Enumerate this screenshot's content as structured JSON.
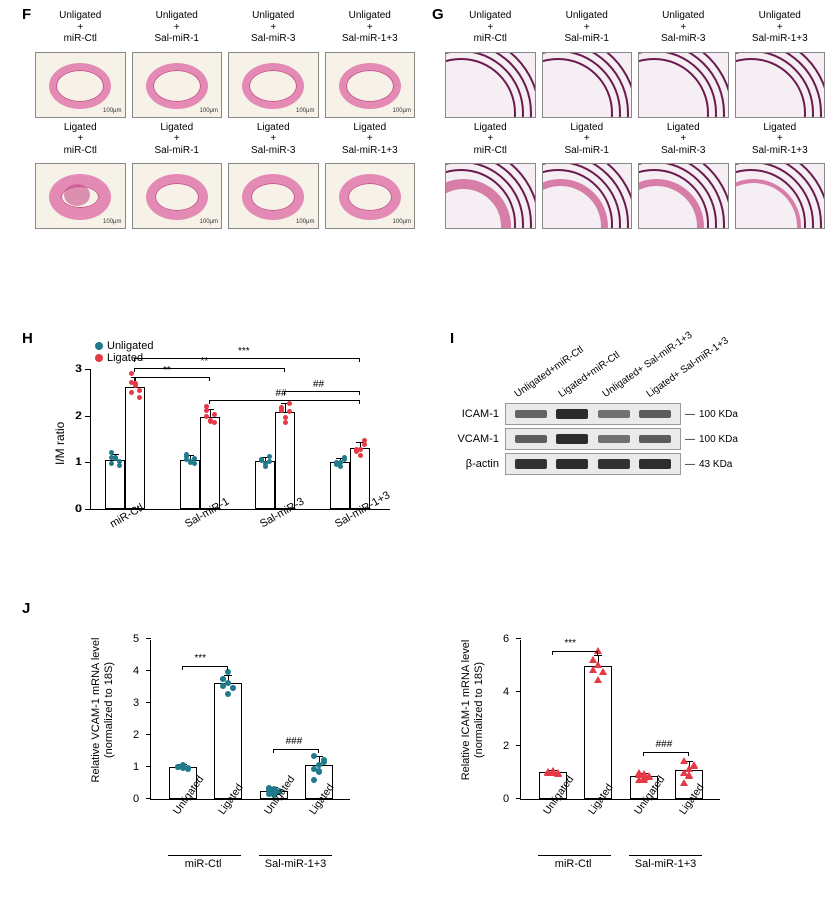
{
  "panel_letters": {
    "F": "F",
    "G": "G",
    "H": "H",
    "I": "I",
    "J": "J"
  },
  "colors": {
    "unligated_dot": "#1f7a8c",
    "ligated_dot": "#e63946",
    "he_pink": "#e48bb5",
    "he_pink_dark": "#c94f8b",
    "evg_purple": "#6a1b4d",
    "evg_pink": "#d16b9a",
    "bg_cream": "#f7f2e8",
    "blot_band": "#2b2b2b"
  },
  "conditions": [
    "miR-Ctl",
    "Sal-miR-1",
    "Sal-miR-3",
    "Sal-miR-1+3"
  ],
  "ligation": [
    "Unligated",
    "Ligated"
  ],
  "plus": "+",
  "scalebar_text": "100μm",
  "panelH": {
    "ylabel": "I/M ratio",
    "ymax": 3,
    "ytick_step": 1,
    "legend": {
      "unligated": "Unligated",
      "ligated": "Ligated"
    },
    "groups": [
      "miR-Ctl",
      "Sal-miR-1",
      "Sal-miR-3",
      "Sal-miR-1+3"
    ],
    "unligated_means": [
      1.05,
      1.05,
      1.02,
      1.0
    ],
    "ligated_means": [
      2.62,
      1.98,
      2.08,
      1.3
    ],
    "unligated_err": [
      0.1,
      0.08,
      0.08,
      0.07
    ],
    "ligated_err": [
      0.18,
      0.15,
      0.16,
      0.12
    ],
    "sig": [
      {
        "from": 0,
        "to": 1,
        "label": "**",
        "y": 2.85,
        "target": "ligated"
      },
      {
        "from": 0,
        "to": 2,
        "label": "**",
        "y": 3.05,
        "target": "ligated"
      },
      {
        "from": 0,
        "to": 3,
        "label": "***",
        "y": 3.25,
        "target": "ligated"
      },
      {
        "from": 1,
        "to": 3,
        "label": "##",
        "y": 2.35,
        "target": "ligated"
      },
      {
        "from": 2,
        "to": 3,
        "label": "##",
        "y": 2.55,
        "target": "ligated"
      }
    ]
  },
  "panelI": {
    "lanes": [
      "Unligated+miR-Ctl",
      "Ligated+miR-Ctl",
      "Unligated+ Sal-miR-1+3",
      "Ligated+ Sal-miR-1+3"
    ],
    "rows": [
      {
        "name": "ICAM-1",
        "mw": "100 KDa",
        "intensity": [
          0.55,
          1.0,
          0.45,
          0.6
        ]
      },
      {
        "name": "VCAM-1",
        "mw": "100 KDa",
        "intensity": [
          0.6,
          1.0,
          0.45,
          0.62
        ]
      },
      {
        "name": "β-actin",
        "mw": "43 KDa",
        "intensity": [
          0.95,
          1.0,
          0.95,
          0.98
        ]
      }
    ]
  },
  "panelJ": {
    "charts": [
      {
        "ylabel": "Relative VCAM-1 mRNA level\n(normalized to 18S)",
        "ymax": 5,
        "ytick_step": 1,
        "bars": [
          1.0,
          3.62,
          0.25,
          1.05
        ],
        "err": [
          0.05,
          0.22,
          0.08,
          0.25
        ],
        "dot_color": "#1f7a8c",
        "dot_shape": "circle",
        "sig": [
          {
            "from": 0,
            "to": 1,
            "label": "***",
            "y": 4.2
          },
          {
            "from": 2,
            "to": 3,
            "label": "###",
            "y": 1.6
          }
        ]
      },
      {
        "ylabel": "Relative ICAM-1 mRNA  level\n(normalized to 18S)",
        "ymax": 6,
        "ytick_step": 2,
        "bars": [
          1.0,
          5.0,
          0.85,
          1.1
        ],
        "err": [
          0.05,
          0.35,
          0.1,
          0.28
        ],
        "dot_color": "#e63946",
        "dot_shape": "triangle",
        "sig": [
          {
            "from": 0,
            "to": 1,
            "label": "***",
            "y": 5.6
          },
          {
            "from": 2,
            "to": 3,
            "label": "###",
            "y": 1.8
          }
        ]
      }
    ],
    "xlabels": [
      "Unligated",
      "Ligated",
      "Unligated",
      "Ligated"
    ],
    "groups": [
      {
        "label": "miR-Ctl",
        "bars": [
          0,
          1
        ]
      },
      {
        "label": "Sal-miR-1+3",
        "bars": [
          2,
          3
        ]
      }
    ]
  }
}
